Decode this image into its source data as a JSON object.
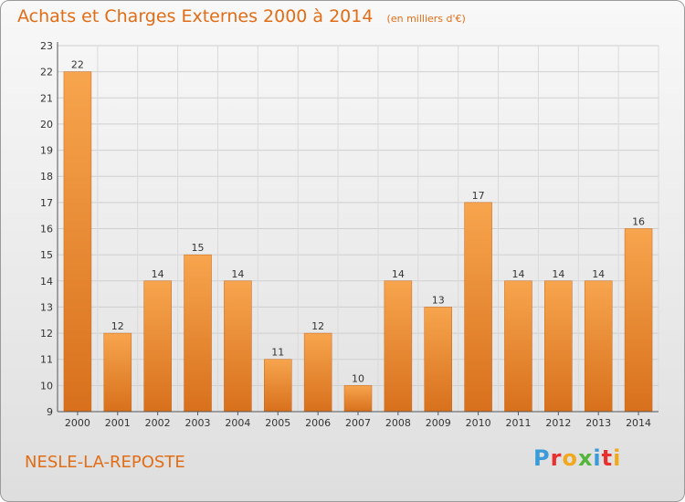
{
  "header": {
    "title": "Achats et Charges Externes 2000 à 2014",
    "unit": "(en milliers d'€)"
  },
  "footer": {
    "city": "NESLE-LA-REPOSTE",
    "logo_letters": [
      "P",
      "r",
      "o",
      "x",
      "i",
      "t",
      "i"
    ],
    "logo_colors": [
      "#3a9bd8",
      "#e8312f",
      "#f2a81d",
      "#55b53a",
      "#3a9bd8",
      "#e8312f",
      "#f2a81d"
    ]
  },
  "chart_data": {
    "type": "bar",
    "categories": [
      "2000",
      "2001",
      "2002",
      "2003",
      "2004",
      "2005",
      "2006",
      "2007",
      "2008",
      "2009",
      "2010",
      "2011",
      "2012",
      "2013",
      "2014"
    ],
    "values": [
      22,
      12,
      14,
      15,
      14,
      11,
      12,
      10,
      14,
      13,
      17,
      14,
      14,
      14,
      16
    ],
    "ylim": [
      9,
      23
    ],
    "yticks": [
      9,
      10,
      11,
      12,
      13,
      14,
      15,
      16,
      17,
      18,
      19,
      20,
      21,
      22,
      23
    ],
    "grid": true,
    "bar_color": "#f08a2c"
  }
}
